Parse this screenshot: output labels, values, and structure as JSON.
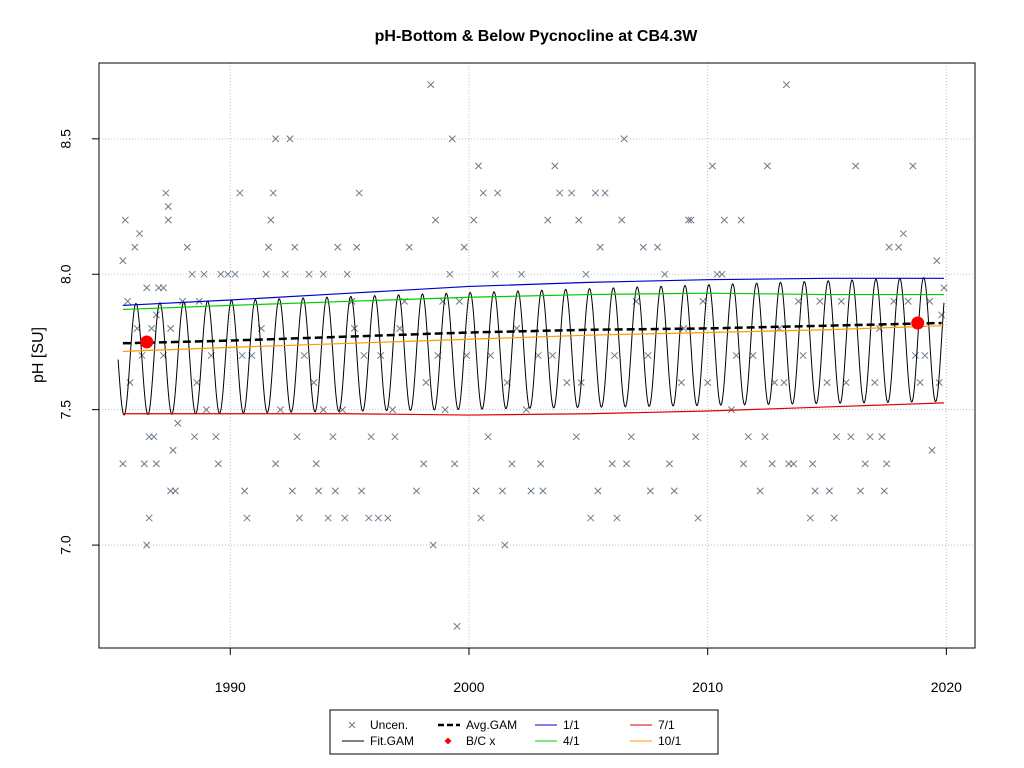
{
  "chart_data": {
    "type": "scatter",
    "title": "pH-Bottom & Below Pycnocline at CB4.3W",
    "xlabel": "",
    "ylabel": "pH [SU]",
    "xlim": [
      1984.5,
      2021.2
    ],
    "ylim": [
      6.62,
      8.78
    ],
    "x_ticks": [
      1990,
      2000,
      2010,
      2020
    ],
    "y_ticks": [
      7.0,
      7.5,
      8.0,
      8.5
    ],
    "grid": true,
    "legend_position": "bottom",
    "colors": {
      "uncensored": "#6b7b8c",
      "fit_gam": "#000000",
      "avg_gam": "#000000",
      "bc": "#ff0000",
      "jan1": "#0000cc",
      "apr1": "#00cc00",
      "jul1": "#dd0000",
      "oct1": "#ff9900",
      "grid": "#bebebe"
    },
    "legend": [
      {
        "key": "uncensored",
        "label": "Uncen.",
        "symbol": "cross"
      },
      {
        "key": "fit_gam",
        "label": "Fit.GAM",
        "symbol": "line"
      },
      {
        "key": "avg_gam",
        "label": "Avg.GAM",
        "symbol": "dashed"
      },
      {
        "key": "bc",
        "label": "B/C x",
        "symbol": "diamond"
      },
      {
        "key": "jan1",
        "label": "1/1",
        "symbol": "line"
      },
      {
        "key": "apr1",
        "label": "4/1",
        "symbol": "line"
      },
      {
        "key": "jul1",
        "label": "7/1",
        "symbol": "line"
      },
      {
        "key": "oct1",
        "label": "10/1",
        "symbol": "line"
      }
    ],
    "fit_gam": {
      "x_start": 1985.3,
      "x_end": 2019.9,
      "min_start": 7.48,
      "min_end": 7.53,
      "max_start": 7.89,
      "max_end": 7.99,
      "peak_phase": 0.05
    },
    "avg_gam": {
      "x": [
        1985.5,
        1990,
        1995,
        2000,
        2005,
        2010,
        2015,
        2019.8
      ],
      "y": [
        7.745,
        7.755,
        7.77,
        7.785,
        7.795,
        7.8,
        7.81,
        7.82
      ]
    },
    "seasonal_lines": [
      {
        "key": "jan1",
        "x": [
          1985.5,
          1990,
          1995,
          2000,
          2005,
          2010,
          2015,
          2019.9
        ],
        "y": [
          7.885,
          7.905,
          7.93,
          7.955,
          7.97,
          7.98,
          7.985,
          7.985
        ]
      },
      {
        "key": "apr1",
        "x": [
          1985.5,
          1990,
          1995,
          2000,
          2005,
          2010,
          2015,
          2019.9
        ],
        "y": [
          7.87,
          7.885,
          7.9,
          7.915,
          7.925,
          7.93,
          7.925,
          7.925
        ]
      },
      {
        "key": "jul1",
        "x": [
          1985.5,
          1990,
          1995,
          2000,
          2005,
          2010,
          2015,
          2019.9
        ],
        "y": [
          7.485,
          7.485,
          7.485,
          7.48,
          7.485,
          7.495,
          7.51,
          7.525
        ]
      },
      {
        "key": "oct1",
        "x": [
          1985.5,
          1990,
          1995,
          2000,
          2005,
          2010,
          2015,
          2019.9
        ],
        "y": [
          7.715,
          7.73,
          7.745,
          7.76,
          7.775,
          7.785,
          7.795,
          7.81
        ]
      }
    ],
    "bc_points": [
      {
        "x": 1986.5,
        "y": 7.75
      },
      {
        "x": 2018.8,
        "y": 7.82
      }
    ],
    "uncensored": [
      [
        1985.5,
        8.05
      ],
      [
        1985.6,
        8.2
      ],
      [
        1985.7,
        7.9
      ],
      [
        1985.5,
        7.3
      ],
      [
        1985.8,
        7.6
      ],
      [
        1986.0,
        8.1
      ],
      [
        1986.1,
        7.8
      ],
      [
        1986.2,
        8.15
      ],
      [
        1986.3,
        7.7
      ],
      [
        1986.4,
        7.3
      ],
      [
        1986.5,
        7.95
      ],
      [
        1986.5,
        7.0
      ],
      [
        1986.6,
        7.1
      ],
      [
        1986.6,
        7.4
      ],
      [
        1986.7,
        7.8
      ],
      [
        1986.8,
        7.4
      ],
      [
        1986.9,
        7.3
      ],
      [
        1986.9,
        7.85
      ],
      [
        1987.0,
        7.95
      ],
      [
        1987.2,
        7.7
      ],
      [
        1987.2,
        7.95
      ],
      [
        1987.3,
        8.3
      ],
      [
        1987.4,
        8.25
      ],
      [
        1987.4,
        8.2
      ],
      [
        1987.5,
        7.2
      ],
      [
        1987.6,
        7.35
      ],
      [
        1987.7,
        7.2
      ],
      [
        1987.8,
        7.45
      ],
      [
        1987.5,
        7.8
      ],
      [
        1988.0,
        7.9
      ],
      [
        1988.2,
        8.1
      ],
      [
        1988.4,
        8.0
      ],
      [
        1988.5,
        7.4
      ],
      [
        1988.6,
        7.6
      ],
      [
        1988.7,
        7.9
      ],
      [
        1988.9,
        8.0
      ],
      [
        1989.0,
        7.5
      ],
      [
        1989.2,
        7.7
      ],
      [
        1989.4,
        7.4
      ],
      [
        1989.5,
        7.3
      ],
      [
        1989.6,
        8.0
      ],
      [
        1989.9,
        8.0
      ],
      [
        1990.2,
        8.0
      ],
      [
        1990.4,
        8.3
      ],
      [
        1990.5,
        7.7
      ],
      [
        1990.6,
        7.2
      ],
      [
        1990.7,
        7.1
      ],
      [
        1990.9,
        7.7
      ],
      [
        1991.3,
        7.8
      ],
      [
        1991.5,
        8.0
      ],
      [
        1991.6,
        8.1
      ],
      [
        1991.7,
        8.2
      ],
      [
        1991.8,
        8.3
      ],
      [
        1991.9,
        8.5
      ],
      [
        1991.9,
        7.3
      ],
      [
        1992.1,
        7.5
      ],
      [
        1992.3,
        8.0
      ],
      [
        1992.5,
        8.5
      ],
      [
        1992.6,
        7.2
      ],
      [
        1992.7,
        8.1
      ],
      [
        1992.8,
        7.4
      ],
      [
        1992.9,
        7.1
      ],
      [
        1993.1,
        7.7
      ],
      [
        1993.3,
        8.0
      ],
      [
        1993.5,
        7.6
      ],
      [
        1993.6,
        7.3
      ],
      [
        1993.7,
        7.2
      ],
      [
        1993.9,
        8.0
      ],
      [
        1993.9,
        7.5
      ],
      [
        1994.1,
        7.1
      ],
      [
        1994.3,
        7.4
      ],
      [
        1994.4,
        7.2
      ],
      [
        1994.5,
        8.1
      ],
      [
        1994.7,
        7.5
      ],
      [
        1994.8,
        7.1
      ],
      [
        1994.9,
        8.0
      ],
      [
        1995.1,
        7.9
      ],
      [
        1995.2,
        7.8
      ],
      [
        1995.3,
        8.1
      ],
      [
        1995.4,
        8.3
      ],
      [
        1995.5,
        7.2
      ],
      [
        1995.6,
        7.7
      ],
      [
        1995.8,
        7.1
      ],
      [
        1995.9,
        7.4
      ],
      [
        1996.2,
        7.1
      ],
      [
        1996.3,
        7.7
      ],
      [
        1996.6,
        7.1
      ],
      [
        1996.8,
        7.5
      ],
      [
        1996.9,
        7.4
      ],
      [
        1997.1,
        7.8
      ],
      [
        1997.3,
        7.9
      ],
      [
        1997.5,
        8.1
      ],
      [
        1997.8,
        7.2
      ],
      [
        1998.1,
        7.3
      ],
      [
        1998.2,
        7.6
      ],
      [
        1998.4,
        8.7
      ],
      [
        1998.5,
        7.0
      ],
      [
        1998.6,
        8.2
      ],
      [
        1998.7,
        7.7
      ],
      [
        1998.9,
        7.9
      ],
      [
        1999.0,
        7.5
      ],
      [
        1999.2,
        8.0
      ],
      [
        1999.3,
        8.5
      ],
      [
        1999.4,
        7.3
      ],
      [
        1999.5,
        6.7
      ],
      [
        1999.6,
        7.9
      ],
      [
        1999.8,
        8.1
      ],
      [
        1999.9,
        7.7
      ],
      [
        2000.2,
        8.2
      ],
      [
        2000.3,
        7.2
      ],
      [
        2000.4,
        8.4
      ],
      [
        2000.5,
        7.1
      ],
      [
        2000.6,
        8.3
      ],
      [
        2000.8,
        7.4
      ],
      [
        2000.9,
        7.7
      ],
      [
        2001.1,
        8.0
      ],
      [
        2001.2,
        8.3
      ],
      [
        2001.4,
        7.2
      ],
      [
        2001.5,
        7.0
      ],
      [
        2001.6,
        7.6
      ],
      [
        2001.8,
        7.3
      ],
      [
        2002.0,
        7.8
      ],
      [
        2002.2,
        8.0
      ],
      [
        2002.4,
        7.5
      ],
      [
        2002.6,
        7.2
      ],
      [
        2002.9,
        7.7
      ],
      [
        2003.0,
        7.3
      ],
      [
        2003.1,
        7.2
      ],
      [
        2003.3,
        8.2
      ],
      [
        2003.5,
        7.7
      ],
      [
        2003.6,
        8.4
      ],
      [
        2003.8,
        8.3
      ],
      [
        2004.1,
        7.6
      ],
      [
        2004.3,
        8.3
      ],
      [
        2004.5,
        7.4
      ],
      [
        2004.6,
        8.2
      ],
      [
        2004.7,
        7.6
      ],
      [
        2004.9,
        8.0
      ],
      [
        2005.1,
        7.1
      ],
      [
        2005.3,
        8.3
      ],
      [
        2005.4,
        7.2
      ],
      [
        2005.5,
        8.1
      ],
      [
        2005.7,
        8.3
      ],
      [
        2006.0,
        7.3
      ],
      [
        2006.1,
        7.7
      ],
      [
        2006.2,
        7.1
      ],
      [
        2006.4,
        8.2
      ],
      [
        2006.5,
        8.5
      ],
      [
        2006.6,
        7.3
      ],
      [
        2006.8,
        7.4
      ],
      [
        2007.0,
        7.9
      ],
      [
        2007.3,
        8.1
      ],
      [
        2007.5,
        7.7
      ],
      [
        2007.6,
        7.2
      ],
      [
        2007.9,
        8.1
      ],
      [
        2008.2,
        8.0
      ],
      [
        2008.4,
        7.3
      ],
      [
        2008.6,
        7.2
      ],
      [
        2008.9,
        7.6
      ],
      [
        2009.0,
        7.8
      ],
      [
        2009.2,
        8.2
      ],
      [
        2009.3,
        8.2
      ],
      [
        2009.5,
        7.4
      ],
      [
        2009.6,
        7.1
      ],
      [
        2009.8,
        7.9
      ],
      [
        2010.0,
        7.6
      ],
      [
        2010.2,
        8.4
      ],
      [
        2010.4,
        8.0
      ],
      [
        2010.6,
        8.0
      ],
      [
        2010.7,
        8.2
      ],
      [
        2011.0,
        7.5
      ],
      [
        2011.2,
        7.7
      ],
      [
        2011.4,
        8.2
      ],
      [
        2011.5,
        7.3
      ],
      [
        2011.7,
        7.4
      ],
      [
        2011.9,
        7.7
      ],
      [
        2012.2,
        7.2
      ],
      [
        2012.4,
        7.4
      ],
      [
        2012.5,
        8.4
      ],
      [
        2012.7,
        7.3
      ],
      [
        2012.8,
        7.6
      ],
      [
        2013.0,
        7.8
      ],
      [
        2013.2,
        7.6
      ],
      [
        2013.3,
        8.7
      ],
      [
        2013.4,
        7.3
      ],
      [
        2013.6,
        7.3
      ],
      [
        2013.8,
        7.9
      ],
      [
        2014.0,
        7.7
      ],
      [
        2014.3,
        7.1
      ],
      [
        2014.4,
        7.3
      ],
      [
        2014.5,
        7.2
      ],
      [
        2014.7,
        7.9
      ],
      [
        2015.0,
        7.6
      ],
      [
        2015.1,
        7.2
      ],
      [
        2015.3,
        7.1
      ],
      [
        2015.4,
        7.4
      ],
      [
        2015.6,
        7.9
      ],
      [
        2015.8,
        7.6
      ],
      [
        2016.0,
        7.4
      ],
      [
        2016.2,
        8.4
      ],
      [
        2016.4,
        7.2
      ],
      [
        2016.6,
        7.3
      ],
      [
        2016.8,
        7.4
      ],
      [
        2017.0,
        7.6
      ],
      [
        2017.2,
        7.8
      ],
      [
        2017.3,
        7.4
      ],
      [
        2017.4,
        7.2
      ],
      [
        2017.5,
        7.3
      ],
      [
        2017.6,
        8.1
      ],
      [
        2017.8,
        7.9
      ],
      [
        2018.0,
        8.1
      ],
      [
        2018.2,
        8.15
      ],
      [
        2018.4,
        7.9
      ],
      [
        2018.6,
        8.4
      ],
      [
        2018.7,
        7.7
      ],
      [
        2018.9,
        7.6
      ],
      [
        2019.1,
        7.7
      ],
      [
        2019.3,
        7.9
      ],
      [
        2019.4,
        7.35
      ],
      [
        2019.6,
        8.05
      ],
      [
        2019.7,
        7.6
      ],
      [
        2019.8,
        7.85
      ],
      [
        2019.9,
        7.95
      ]
    ]
  }
}
